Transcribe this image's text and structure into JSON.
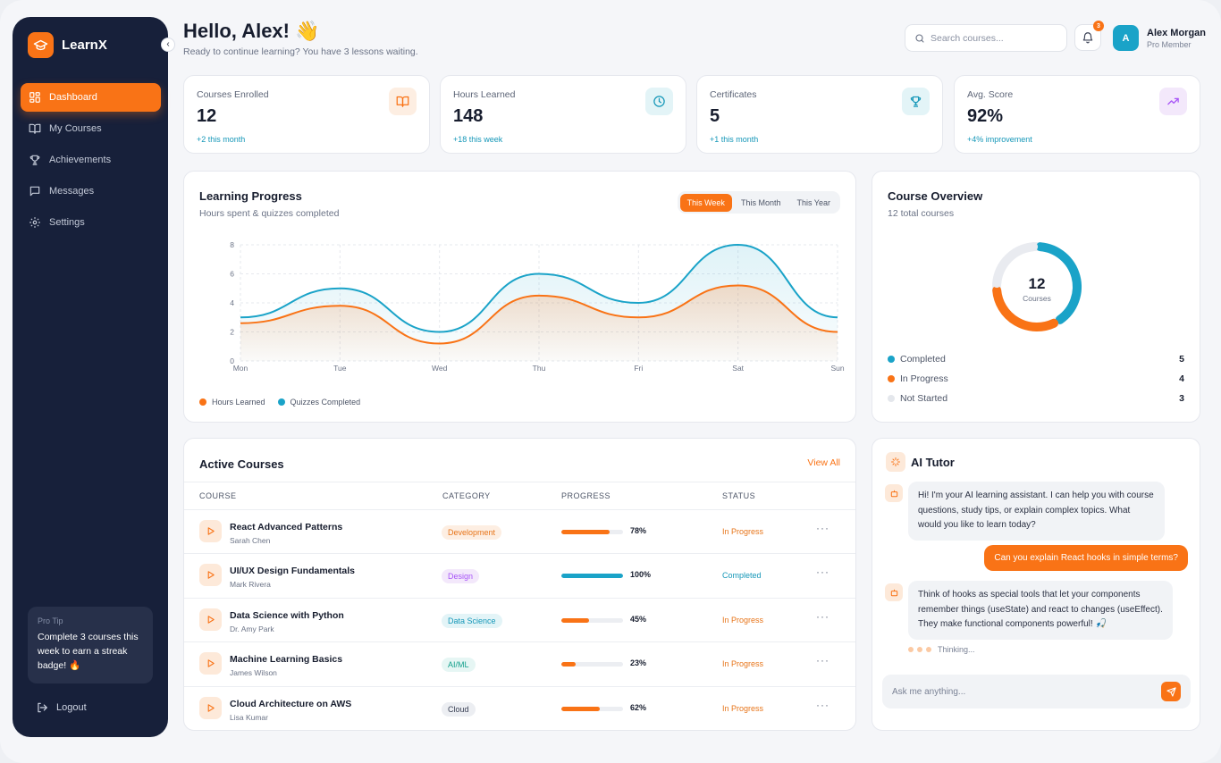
{
  "brand": {
    "name": "LearnX"
  },
  "sidebar": {
    "collapse_glyph": "‹",
    "items": [
      {
        "label": "Dashboard",
        "icon": "grid-icon",
        "active": true
      },
      {
        "label": "My Courses",
        "icon": "book-icon"
      },
      {
        "label": "Achievements",
        "icon": "trophy-icon"
      },
      {
        "label": "Messages",
        "icon": "message-icon"
      },
      {
        "label": "Settings",
        "icon": "gear-icon"
      }
    ],
    "protip": {
      "title": "Pro Tip",
      "text": "Complete 3 courses this week to earn a streak badge! 🔥"
    },
    "logout_label": "Logout"
  },
  "header": {
    "greeting": "Hello, Alex! 👋",
    "subtitle": "Ready to continue learning? You have 3 lessons waiting.",
    "search_placeholder": "Search courses...",
    "notifications_count": "3",
    "user": {
      "initial": "A",
      "name": "Alex Morgan",
      "role": "Pro Member"
    }
  },
  "stats": [
    {
      "label": "Courses Enrolled",
      "value": "12",
      "delta": "+2 this month",
      "icon": "book-icon",
      "tint": "#fdeee2",
      "color": "#f97316"
    },
    {
      "label": "Hours Learned",
      "value": "148",
      "delta": "+18 this week",
      "icon": "clock-icon",
      "tint": "#e3f4f7",
      "color": "#1597b8"
    },
    {
      "label": "Certificates",
      "value": "5",
      "delta": "+1 this month",
      "icon": "trophy-icon",
      "tint": "#e3f4f7",
      "color": "#1597b8"
    },
    {
      "label": "Avg. Score",
      "value": "92%",
      "delta": "+4% improvement",
      "icon": "trend-up-icon",
      "tint": "#f3e8fb",
      "color": "#a855f7"
    }
  ],
  "progress": {
    "title": "Learning Progress",
    "subtitle": "Hours spent & quizzes completed",
    "ranges": [
      "This Week",
      "This Month",
      "This Year"
    ],
    "active_range": 0
  },
  "chart_data": {
    "type": "area",
    "title": "Learning Progress",
    "categories": [
      "Mon",
      "Tue",
      "Wed",
      "Thu",
      "Fri",
      "Sat",
      "Sun"
    ],
    "ylim": [
      0,
      8
    ],
    "yticks": [
      "0",
      "2",
      "4",
      "6",
      "8"
    ],
    "grid": true,
    "legend_position": "bottom-left",
    "series": [
      {
        "name": "Hours Learned",
        "color": "#f97316",
        "values": [
          2.6,
          3.8,
          1.2,
          4.5,
          3.0,
          5.2,
          2.0
        ]
      },
      {
        "name": "Quizzes Completed",
        "color": "#1aa3c8",
        "values": [
          3.0,
          5.0,
          2.0,
          6.0,
          4.0,
          8.0,
          3.0
        ]
      }
    ]
  },
  "overview": {
    "title": "Course Overview",
    "subtitle": "12 total courses",
    "total": "12",
    "total_label": "Courses",
    "segments": [
      {
        "label": "Completed",
        "value": 5,
        "color": "#1aa3c8"
      },
      {
        "label": "In Progress",
        "value": 4,
        "color": "#f97316"
      },
      {
        "label": "Not Started",
        "value": 3,
        "color": "#e9ebf0"
      }
    ]
  },
  "courses": {
    "title": "Active Courses",
    "view_all": "View All",
    "columns": [
      "COURSE",
      "CATEGORY",
      "PROGRESS",
      "STATUS"
    ],
    "more_glyph": "···",
    "rows": [
      {
        "title": "React Advanced Patterns",
        "author": "Sarah Chen",
        "category": "Development",
        "chip_bg": "#fdeee2",
        "chip_fg": "#e7751a",
        "progress": 78,
        "pct": "78%",
        "bar": "#f97316",
        "status": "In Progress",
        "status_color": "#e7751a"
      },
      {
        "title": "UI/UX Design Fundamentals",
        "author": "Mark Rivera",
        "category": "Design",
        "chip_bg": "#f3e8fb",
        "chip_fg": "#a855f7",
        "progress": 100,
        "pct": "100%",
        "bar": "#1aa3c8",
        "status": "Completed",
        "status_color": "#1597b8"
      },
      {
        "title": "Data Science with Python",
        "author": "Dr. Amy Park",
        "category": "Data Science",
        "chip_bg": "#e3f4f7",
        "chip_fg": "#1597b8",
        "progress": 45,
        "pct": "45%",
        "bar": "#f97316",
        "status": "In Progress",
        "status_color": "#e7751a"
      },
      {
        "title": "Machine Learning Basics",
        "author": "James Wilson",
        "category": "AI/ML",
        "chip_bg": "#e6f6f4",
        "chip_fg": "#14a08c",
        "progress": 23,
        "pct": "23%",
        "bar": "#f97316",
        "status": "In Progress",
        "status_color": "#e7751a"
      },
      {
        "title": "Cloud Architecture on AWS",
        "author": "Lisa Kumar",
        "category": "Cloud",
        "chip_bg": "#eceef2",
        "chip_fg": "#3a4155",
        "progress": 62,
        "pct": "62%",
        "bar": "#f97316",
        "status": "In Progress",
        "status_color": "#e7751a"
      }
    ]
  },
  "tutor": {
    "title": "AI Tutor",
    "messages": [
      {
        "from": "bot",
        "text": "Hi! I'm your AI learning assistant. I can help you with course questions, study tips, or explain complex topics. What would you like to learn today?"
      },
      {
        "from": "user",
        "text": "Can you explain React hooks in simple terms?"
      },
      {
        "from": "bot",
        "text": "Think of hooks as special tools that let your components remember things (useState) and react to changes (useEffect). They make functional components powerful! 🎣"
      }
    ],
    "thinking": "Thinking...",
    "input_placeholder": "Ask me anything..."
  }
}
